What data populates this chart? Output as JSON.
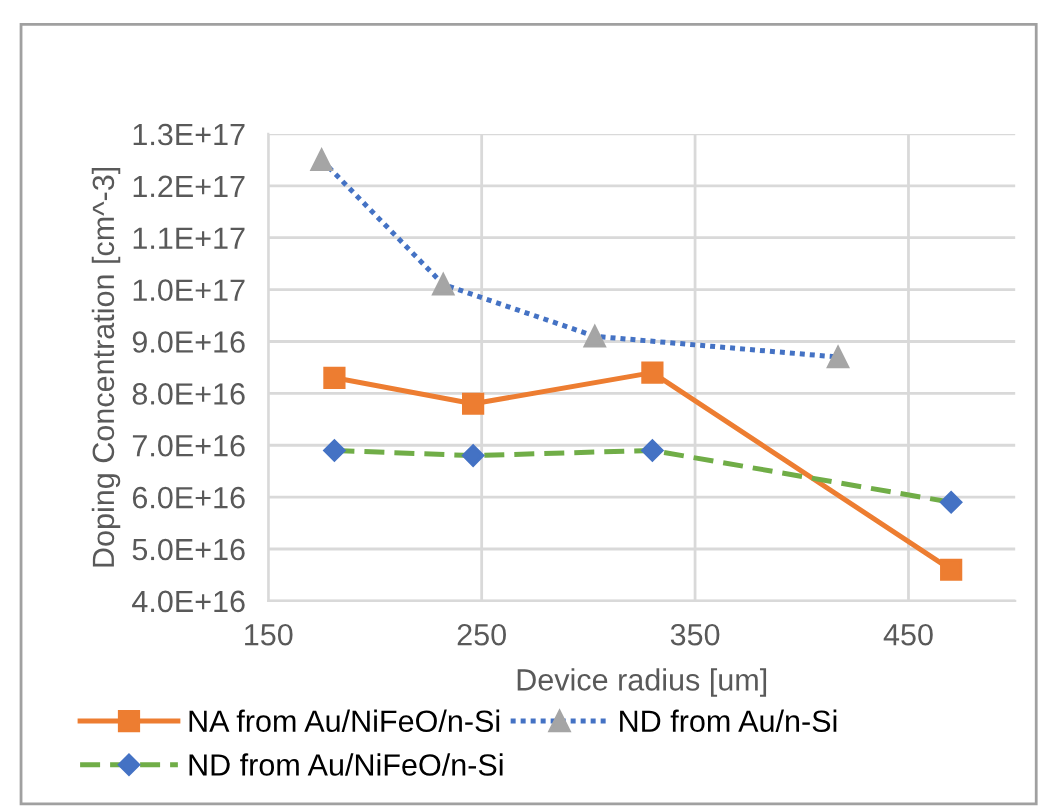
{
  "chart_data": {
    "type": "line",
    "xlabel": "Device radius [um]",
    "ylabel": "Doping Concentration [cm^-3]",
    "xlim": [
      150,
      500
    ],
    "xticks": [
      150,
      250,
      350,
      450
    ],
    "ylim": [
      4e+16,
      1.3e+17
    ],
    "yticks": [
      {
        "value": 4e+16,
        "label": "4.0E+16"
      },
      {
        "value": 5e+16,
        "label": "5.0E+16"
      },
      {
        "value": 6e+16,
        "label": "6.0E+16"
      },
      {
        "value": 7e+16,
        "label": "7.0E+16"
      },
      {
        "value": 8e+16,
        "label": "8.0E+16"
      },
      {
        "value": 9e+16,
        "label": "9.0E+16"
      },
      {
        "value": 1e+17,
        "label": "1.0E+17"
      },
      {
        "value": 1.1e+17,
        "label": "1.1E+17"
      },
      {
        "value": 1.2e+17,
        "label": "1.2E+17"
      },
      {
        "value": 1.3e+17,
        "label": "1.3E+17"
      }
    ],
    "grid": true,
    "legend": "bottom",
    "series": [
      {
        "name": "NA from Au/NiFeO/n-Si",
        "color": "#ed7d31",
        "marker": "square",
        "line_style": "solid",
        "x": [
          181,
          246,
          330,
          470
        ],
        "values": [
          8.3e+16,
          7.8e+16,
          8.4e+16,
          4.6e+16
        ]
      },
      {
        "name": "ND from Au/n-Si",
        "color": "#4472c4",
        "colors": [
          "#a5a5a5",
          "#a5a5a5",
          "#a5a5a5",
          "#a5a5a5"
        ],
        "marker": "triangle",
        "line_style": "dotted",
        "x": [
          175,
          232,
          303,
          417
        ],
        "values": [
          1.25e+17,
          1.01e+17,
          9.1e+16,
          8.7e+16
        ]
      },
      {
        "name": "ND from Au/NiFeO/n-Si",
        "color": "#70ad47",
        "colors": [
          "#4472c4",
          "#4472c4",
          "#4472c4",
          "#4472c4"
        ],
        "marker": "diamond",
        "line_style": "dashed",
        "x": [
          181,
          246,
          330,
          470
        ],
        "values": [
          6.9e+16,
          6.8e+16,
          6.9e+16,
          5.9e+16
        ]
      }
    ]
  }
}
